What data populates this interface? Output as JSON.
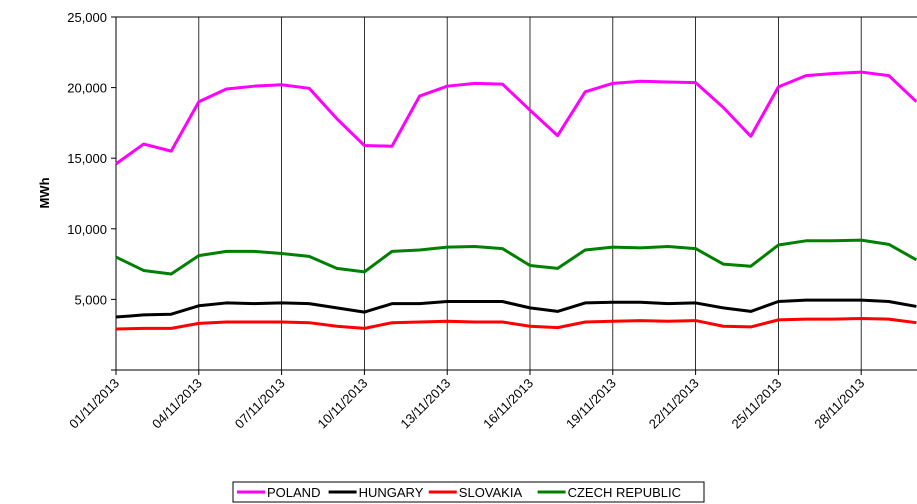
{
  "chart_data": {
    "type": "line",
    "y_label": "MWh",
    "categories": [
      "01/11/2013",
      null,
      null,
      "04/11/2013",
      null,
      null,
      "07/11/2013",
      null,
      null,
      "10/11/2013",
      null,
      null,
      "13/11/2013",
      null,
      null,
      "16/11/2013",
      null,
      null,
      "19/11/2013",
      null,
      null,
      "22/11/2013",
      null,
      null,
      "25/11/2013",
      null,
      null,
      "28/11/2013",
      null,
      null
    ],
    "ylim": [
      0,
      25000
    ],
    "yticks": [
      {
        "value": 5000,
        "label": "5,000"
      },
      {
        "value": 10000,
        "label": "10,000"
      },
      {
        "value": 15000,
        "label": "15,000"
      },
      {
        "value": 20000,
        "label": "20,000"
      },
      {
        "value": 25000,
        "label": "25,000"
      }
    ],
    "grid": "x",
    "legend": "bottom",
    "series": [
      {
        "name": "POLAND",
        "color": "#ff00ff",
        "values": [
          14600,
          16000,
          15500,
          19000,
          19900,
          20100,
          20200,
          19950,
          17800,
          15900,
          15850,
          19400,
          20100,
          20300,
          20250,
          18400,
          16600,
          19700,
          20300,
          20450,
          20400,
          20350,
          18600,
          16550,
          20050,
          20850,
          21000,
          21100,
          20850,
          19000
        ]
      },
      {
        "name": "HUNGARY",
        "color": "#000000",
        "values": [
          3750,
          3900,
          3950,
          4550,
          4750,
          4700,
          4750,
          4700,
          4400,
          4100,
          4700,
          4700,
          4850,
          4850,
          4850,
          4400,
          4150,
          4750,
          4800,
          4800,
          4700,
          4750,
          4400,
          4150,
          4850,
          4950,
          4950,
          4950,
          4850,
          4500
        ]
      },
      {
        "name": "SLOVAKIA",
        "color": "#ff0000",
        "values": [
          2900,
          2950,
          2950,
          3300,
          3400,
          3400,
          3400,
          3350,
          3100,
          2950,
          3350,
          3400,
          3450,
          3400,
          3400,
          3100,
          3000,
          3400,
          3450,
          3500,
          3450,
          3500,
          3100,
          3050,
          3550,
          3600,
          3600,
          3650,
          3600,
          3350
        ]
      },
      {
        "name": "CZECH REPUBLIC",
        "color": "#008000",
        "values": [
          8000,
          7050,
          6800,
          8100,
          8400,
          8400,
          8250,
          8050,
          7200,
          6950,
          8400,
          8500,
          8700,
          8750,
          8600,
          7400,
          7200,
          8500,
          8700,
          8650,
          8750,
          8600,
          7500,
          7350,
          8850,
          9150,
          9150,
          9200,
          8900,
          7800
        ]
      }
    ]
  }
}
